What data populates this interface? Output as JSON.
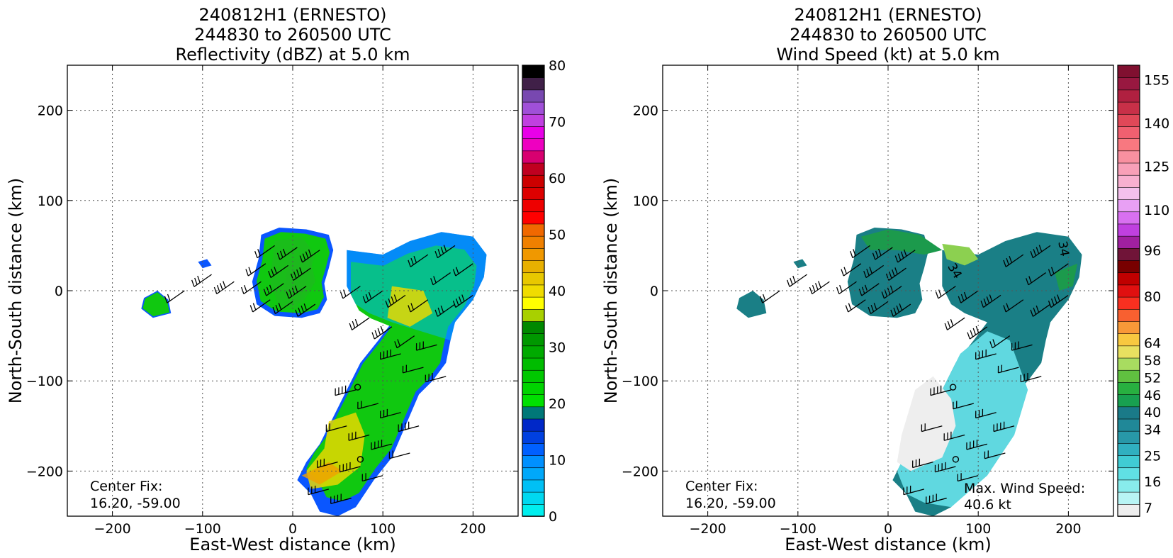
{
  "chart_data": [
    {
      "type": "heatmap",
      "title": [
        "240812H1 (ERNESTO)",
        "244830 to 260500 UTC",
        "Reflectivity (dBZ) at 5.0 km"
      ],
      "xlabel": "East-West distance (km)",
      "ylabel": "North-South distance (km)",
      "xlim": [
        -250,
        250
      ],
      "ylim": [
        -250,
        250
      ],
      "xticks": [
        -200,
        -100,
        0,
        100,
        200
      ],
      "yticks": [
        -200,
        -100,
        0,
        100,
        200
      ],
      "xtick_labels": [
        "−200",
        "−100",
        "0",
        "100",
        "200"
      ],
      "ytick_labels": [
        "−200",
        "−100",
        "0",
        "100",
        "200"
      ],
      "grid": true,
      "annotations": [
        {
          "text": "Center Fix:",
          "x": -225,
          "y": -215
        },
        {
          "text": "16.20, -59.00",
          "x": -225,
          "y": -233
        }
      ],
      "colorbar": {
        "min": 0,
        "max": 80,
        "ticks": [
          0,
          10,
          20,
          30,
          40,
          50,
          60,
          70,
          80
        ],
        "tick_labels": [
          "0",
          "10",
          "20",
          "30",
          "40",
          "50",
          "60",
          "70",
          "80"
        ],
        "colors": [
          "#00eeee",
          "#00d8f0",
          "#00c0f5",
          "#00a8fa",
          "#0090ff",
          "#0060ff",
          "#0040e0",
          "#0028c8",
          "#007878",
          "#00e000",
          "#00d400",
          "#00c800",
          "#00bc00",
          "#00aa00",
          "#009800",
          "#008800",
          "#a8d000",
          "#ffff00",
          "#f0dc00",
          "#e8c800",
          "#e8b000",
          "#f09800",
          "#f08000",
          "#f06800",
          "#ff0000",
          "#ee0000",
          "#dd0000",
          "#cc0000",
          "#c00020",
          "#d80070",
          "#ee00c0",
          "#e800e8",
          "#c040e0",
          "#a050d8",
          "#7848b0",
          "#402048",
          "#000000"
        ]
      },
      "colors": {
        "weak": "#0a56ff",
        "light": "#00b8f0",
        "moderate": "#10c810",
        "heavy": "#e8d800",
        "strong": "#f0a000"
      }
    },
    {
      "type": "heatmap",
      "title": [
        "240812H1 (ERNESTO)",
        "244830 to 260500 UTC",
        "Wind Speed (kt) at 5.0 km"
      ],
      "xlabel": "East-West distance (km)",
      "ylabel": "North-South distance (km)",
      "xlim": [
        -250,
        250
      ],
      "ylim": [
        -250,
        250
      ],
      "xticks": [
        -200,
        -100,
        0,
        100,
        200
      ],
      "yticks": [
        -200,
        -100,
        0,
        100,
        200
      ],
      "xtick_labels": [
        "−200",
        "−100",
        "0",
        "100",
        "200"
      ],
      "ytick_labels": [
        "−200",
        "−100",
        "0",
        "100",
        "200"
      ],
      "grid": true,
      "annotations": [
        {
          "text": "Center Fix:",
          "x": -225,
          "y": -215
        },
        {
          "text": "16.20, -59.00",
          "x": -225,
          "y": -233
        },
        {
          "text": "Max. Wind Speed:",
          "x": 85,
          "y": -217
        },
        {
          "text": "40.6 kt",
          "x": 85,
          "y": -235
        },
        {
          "text": "34",
          "x": 73,
          "y": 27
        },
        {
          "text": "34",
          "x": 196,
          "y": 45
        }
      ],
      "colorbar": {
        "min": 4,
        "max": 160,
        "ticks": [
          7,
          16,
          25,
          34,
          40,
          46,
          52,
          58,
          64,
          80,
          96,
          110,
          125,
          140,
          155
        ],
        "tick_labels": [
          "7",
          "16",
          "25",
          "34",
          "40",
          "46",
          "52",
          "58",
          "64",
          "80",
          "96",
          "110",
          "125",
          "140",
          "155"
        ],
        "colors": [
          "#eeeeee",
          "#b8f4f4",
          "#88ecec",
          "#60e0e4",
          "#40ccd4",
          "#30b0c0",
          "#2898a8",
          "#208898",
          "#1a7a88",
          "#18a050",
          "#28b040",
          "#60c040",
          "#a8dc60",
          "#e8e060",
          "#f8c840",
          "#f89838",
          "#f86030",
          "#f83020",
          "#e01010",
          "#c00000",
          "#780000",
          "#701438",
          "#a020a0",
          "#c040e0",
          "#d870f0",
          "#e8a0f4",
          "#f4c0ec",
          "#f8b0d0",
          "#f8a0b8",
          "#f890a0",
          "#f87880",
          "#f06070",
          "#e04858",
          "#c83048",
          "#b02040",
          "#981840",
          "#801030"
        ]
      },
      "colors": {
        "calm": "#eeeeee",
        "light": "#60d8e0",
        "moderate": "#1a7f86",
        "strong": "#1c9a4c",
        "peak": "#8cd050"
      }
    }
  ]
}
